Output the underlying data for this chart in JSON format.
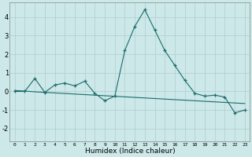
{
  "xlabel": "Humidex (Indice chaleur)",
  "bg_color": "#cce8e8",
  "grid_color": "#b0cccc",
  "line_color": "#1a6b6b",
  "xlim": [
    -0.5,
    23.5
  ],
  "ylim": [
    -2.7,
    4.8
  ],
  "xticks": [
    0,
    1,
    2,
    3,
    4,
    5,
    6,
    7,
    8,
    9,
    10,
    11,
    12,
    13,
    14,
    15,
    16,
    17,
    18,
    19,
    20,
    21,
    22,
    23
  ],
  "yticks": [
    -2,
    -1,
    0,
    1,
    2,
    3,
    4
  ],
  "line1_x": [
    0,
    1,
    2,
    3,
    4,
    5,
    6,
    7,
    8,
    9,
    10,
    11,
    12,
    13,
    14,
    15,
    16,
    17,
    18,
    19,
    20,
    21,
    22,
    23
  ],
  "line1_y": [
    0.0,
    0.0,
    0.7,
    -0.05,
    0.35,
    0.45,
    0.3,
    0.55,
    -0.1,
    -0.5,
    -0.25,
    2.2,
    3.5,
    4.4,
    3.3,
    2.2,
    1.4,
    0.6,
    -0.1,
    -0.25,
    -0.2,
    -0.3,
    -1.15,
    -1.0
  ],
  "line2_x": [
    0,
    1,
    2,
    3,
    4,
    5,
    6,
    7,
    8,
    9,
    10,
    11,
    12,
    13,
    14,
    15,
    16,
    17,
    18,
    19,
    20,
    21,
    22,
    23
  ],
  "line2_y": [
    0.05,
    0.02,
    -0.02,
    -0.05,
    -0.08,
    -0.11,
    -0.14,
    -0.17,
    -0.2,
    -0.23,
    -0.26,
    -0.29,
    -0.32,
    -0.35,
    -0.38,
    -0.41,
    -0.44,
    -0.47,
    -0.5,
    -0.53,
    -0.56,
    -0.59,
    -0.62,
    -0.65
  ],
  "line3_x": [
    0,
    23
  ],
  "line3_y": [
    0.05,
    -0.65
  ]
}
